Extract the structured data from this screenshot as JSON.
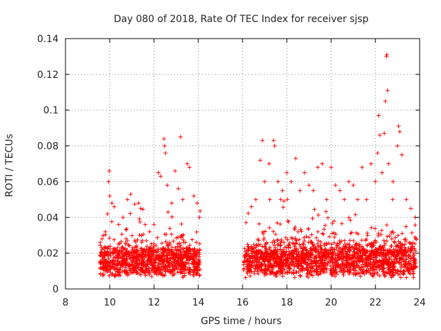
{
  "chart_data": {
    "type": "scatter",
    "title": "Day 080 of 2018, Rate Of TEC Index for receiver sjsp",
    "xlabel": "GPS time / hours",
    "ylabel": "ROTI / TECUs",
    "xlim": [
      8,
      24
    ],
    "ylim": [
      0,
      0.14
    ],
    "x_ticks": [
      8,
      10,
      12,
      14,
      16,
      18,
      20,
      22,
      24
    ],
    "y_ticks": [
      0,
      0.02,
      0.04,
      0.06,
      0.08,
      0.1,
      0.12,
      0.14
    ],
    "x_tick_labels": [
      "8",
      "10",
      "12",
      "14",
      "16",
      "18",
      "20",
      "22",
      "24"
    ],
    "y_tick_labels": [
      "0",
      "0.02",
      "0.04",
      "0.06",
      "0.08",
      "0.1",
      "0.12",
      "0.14"
    ],
    "grid": true,
    "marker": "plus",
    "color": "#ff0000",
    "series": [
      {
        "name": "ROTI",
        "segments": [
          [
            9.55,
            14.1
          ],
          [
            16.05,
            23.85
          ]
        ],
        "points": [
          [
            9.65,
            0.028
          ],
          [
            9.8,
            0.032
          ],
          [
            9.9,
            0.042
          ],
          [
            9.95,
            0.06
          ],
          [
            9.98,
            0.066
          ],
          [
            10.0,
            0.052
          ],
          [
            10.1,
            0.048
          ],
          [
            10.2,
            0.046
          ],
          [
            10.4,
            0.036
          ],
          [
            10.6,
            0.04
          ],
          [
            10.8,
            0.05
          ],
          [
            10.95,
            0.053
          ],
          [
            11.3,
            0.048
          ],
          [
            11.4,
            0.045
          ],
          [
            11.6,
            0.036
          ],
          [
            11.8,
            0.032
          ],
          [
            12.0,
            0.036
          ],
          [
            12.2,
            0.065
          ],
          [
            12.3,
            0.063
          ],
          [
            12.45,
            0.084
          ],
          [
            12.48,
            0.08
          ],
          [
            12.52,
            0.076
          ],
          [
            12.6,
            0.058
          ],
          [
            12.8,
            0.048
          ],
          [
            12.95,
            0.066
          ],
          [
            13.1,
            0.056
          ],
          [
            13.2,
            0.085
          ],
          [
            13.3,
            0.05
          ],
          [
            13.5,
            0.07
          ],
          [
            13.6,
            0.068
          ],
          [
            13.8,
            0.052
          ],
          [
            13.95,
            0.048
          ],
          [
            14.05,
            0.04
          ],
          [
            16.4,
            0.046
          ],
          [
            16.6,
            0.05
          ],
          [
            16.8,
            0.072
          ],
          [
            16.9,
            0.083
          ],
          [
            17.0,
            0.06
          ],
          [
            17.2,
            0.07
          ],
          [
            17.4,
            0.083
          ],
          [
            17.45,
            0.08
          ],
          [
            17.6,
            0.06
          ],
          [
            17.8,
            0.055
          ],
          [
            18.0,
            0.065
          ],
          [
            18.2,
            0.06
          ],
          [
            18.4,
            0.073
          ],
          [
            18.6,
            0.055
          ],
          [
            18.8,
            0.065
          ],
          [
            19.0,
            0.058
          ],
          [
            19.2,
            0.055
          ],
          [
            19.4,
            0.068
          ],
          [
            19.6,
            0.07
          ],
          [
            19.8,
            0.05
          ],
          [
            20.0,
            0.068
          ],
          [
            20.2,
            0.058
          ],
          [
            20.4,
            0.055
          ],
          [
            20.6,
            0.05
          ],
          [
            20.8,
            0.06
          ],
          [
            21.0,
            0.058
          ],
          [
            21.2,
            0.05
          ],
          [
            21.4,
            0.068
          ],
          [
            21.6,
            0.05
          ],
          [
            21.8,
            0.07
          ],
          [
            22.0,
            0.06
          ],
          [
            22.1,
            0.076
          ],
          [
            22.15,
            0.097
          ],
          [
            22.2,
            0.086
          ],
          [
            22.3,
            0.065
          ],
          [
            22.4,
            0.087
          ],
          [
            22.45,
            0.105
          ],
          [
            22.5,
            0.13
          ],
          [
            22.52,
            0.131
          ],
          [
            22.55,
            0.111
          ],
          [
            22.6,
            0.07
          ],
          [
            22.8,
            0.06
          ],
          [
            23.0,
            0.08
          ],
          [
            23.05,
            0.091
          ],
          [
            23.1,
            0.088
          ],
          [
            23.2,
            0.075
          ],
          [
            23.4,
            0.05
          ],
          [
            23.6,
            0.045
          ],
          [
            23.8,
            0.04
          ]
        ]
      }
    ]
  }
}
